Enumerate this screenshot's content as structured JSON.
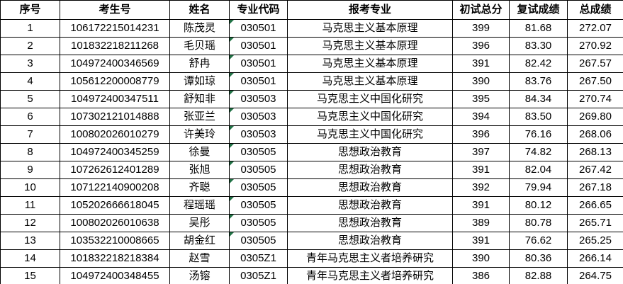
{
  "table": {
    "headers": [
      "序号",
      "考生号",
      "姓名",
      "专业代码",
      "报考专业",
      "初试总分",
      "复试成绩",
      "总成绩"
    ],
    "columns": [
      "no",
      "candidate_id",
      "name",
      "major_code",
      "major_name",
      "initial_score",
      "retest_score",
      "total_score"
    ],
    "marker_color": "#217346",
    "border_color": "#000000",
    "background_color": "#ffffff",
    "rows": [
      {
        "no": "1",
        "candidate_id": "106172215014231",
        "name": "陈茂灵",
        "major_code": "030501",
        "major_name": "马克思主义基本原理",
        "initial_score": "399",
        "retest_score": "81.68",
        "total_score": "272.07",
        "code_text_marker": true
      },
      {
        "no": "2",
        "candidate_id": "101832218211268",
        "name": "毛贝瑶",
        "major_code": "030501",
        "major_name": "马克思主义基本原理",
        "initial_score": "396",
        "retest_score": "83.30",
        "total_score": "270.92",
        "code_text_marker": true
      },
      {
        "no": "3",
        "candidate_id": "104972400346569",
        "name": "舒冉",
        "major_code": "030501",
        "major_name": "马克思主义基本原理",
        "initial_score": "391",
        "retest_score": "82.42",
        "total_score": "267.57",
        "code_text_marker": true
      },
      {
        "no": "4",
        "candidate_id": "105612200008779",
        "name": "谭如琼",
        "major_code": "030501",
        "major_name": "马克思主义基本原理",
        "initial_score": "390",
        "retest_score": "83.76",
        "total_score": "267.50",
        "code_text_marker": true
      },
      {
        "no": "5",
        "candidate_id": "104972400347511",
        "name": "舒知非",
        "major_code": "030503",
        "major_name": "马克思主义中国化研究",
        "initial_score": "395",
        "retest_score": "84.34",
        "total_score": "270.74",
        "code_text_marker": true
      },
      {
        "no": "6",
        "candidate_id": "107302121014888",
        "name": "张亚兰",
        "major_code": "030503",
        "major_name": "马克思主义中国化研究",
        "initial_score": "394",
        "retest_score": "83.50",
        "total_score": "269.80",
        "code_text_marker": true
      },
      {
        "no": "7",
        "candidate_id": "100802026010279",
        "name": "许美玲",
        "major_code": "030503",
        "major_name": "马克思主义中国化研究",
        "initial_score": "396",
        "retest_score": "76.16",
        "total_score": "268.06",
        "code_text_marker": true
      },
      {
        "no": "8",
        "candidate_id": "104972400345259",
        "name": "徐曼",
        "major_code": "030505",
        "major_name": "思想政治教育",
        "initial_score": "397",
        "retest_score": "74.82",
        "total_score": "268.13",
        "code_text_marker": true
      },
      {
        "no": "9",
        "candidate_id": "107262612401289",
        "name": "张旭",
        "major_code": "030505",
        "major_name": "思想政治教育",
        "initial_score": "391",
        "retest_score": "82.04",
        "total_score": "267.42",
        "code_text_marker": true
      },
      {
        "no": "10",
        "candidate_id": "107122140900208",
        "name": "齐聪",
        "major_code": "030505",
        "major_name": "思想政治教育",
        "initial_score": "392",
        "retest_score": "79.94",
        "total_score": "267.18",
        "code_text_marker": true
      },
      {
        "no": "11",
        "candidate_id": "105202666618045",
        "name": "程瑶瑶",
        "major_code": "030505",
        "major_name": "思想政治教育",
        "initial_score": "391",
        "retest_score": "80.12",
        "total_score": "266.65",
        "code_text_marker": true
      },
      {
        "no": "12",
        "candidate_id": "100802026010638",
        "name": "吴彤",
        "major_code": "030505",
        "major_name": "思想政治教育",
        "initial_score": "389",
        "retest_score": "80.78",
        "total_score": "265.71",
        "code_text_marker": true
      },
      {
        "no": "13",
        "candidate_id": "103532210008665",
        "name": "胡金红",
        "major_code": "030505",
        "major_name": "思想政治教育",
        "initial_score": "391",
        "retest_score": "76.62",
        "total_score": "265.25",
        "code_text_marker": true
      },
      {
        "no": "14",
        "candidate_id": "101832218218384",
        "name": "赵雪",
        "major_code": "0305Z1",
        "major_name": "青年马克思主义者培养研究",
        "initial_score": "390",
        "retest_score": "80.36",
        "total_score": "266.14",
        "code_text_marker": false
      },
      {
        "no": "15",
        "candidate_id": "104972400348455",
        "name": "汤镕",
        "major_code": "0305Z1",
        "major_name": "青年马克思主义者培养研究",
        "initial_score": "386",
        "retest_score": "82.88",
        "total_score": "264.75",
        "code_text_marker": false
      }
    ]
  }
}
